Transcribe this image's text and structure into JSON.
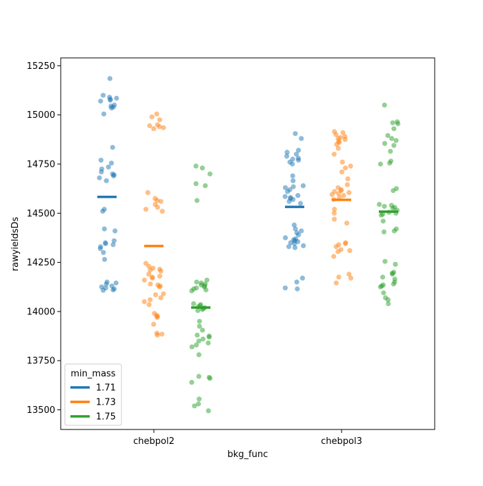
{
  "chart_data": {
    "type": "scatter",
    "subtype": "strip-plot-with-means",
    "xlabel": "bkg_func",
    "ylabel": "rawyieldsDs",
    "categories": [
      "chebpol2",
      "chebpol3"
    ],
    "ylim": [
      13400,
      15290
    ],
    "yticks": [
      13500,
      13750,
      14000,
      14250,
      14500,
      14750,
      15000,
      15250
    ],
    "grid": false,
    "legend": {
      "title": "min_mass",
      "placement": "lower-left",
      "entries": [
        "1.71",
        "1.73",
        "1.75"
      ]
    },
    "series": [
      {
        "name": "1.71",
        "color": "#1f77b4",
        "groups": [
          {
            "category": "chebpol2",
            "mean": 14583,
            "points": [
              15185,
              15100,
              15090,
              15085,
              15080,
              15075,
              15070,
              15050,
              15045,
              15040,
              15035,
              15005,
              14835,
              14770,
              14735,
              14725,
              14710,
              14700,
              14695,
              14690,
              14680,
              14665,
              14755,
              14520,
              14510,
              14420,
              14410,
              14360,
              14350,
              14345,
              14340,
              14330,
              14320,
              14300,
              14265,
              14150,
              14145,
              14140,
              14130,
              14125,
              14120,
              14115,
              14110,
              14108
            ]
          },
          {
            "category": "chebpol3",
            "mean": 14532,
            "points": [
              14905,
              14880,
              14820,
              14810,
              14800,
              14790,
              14780,
              14775,
              14770,
              14760,
              14750,
              14690,
              14665,
              14640,
              14635,
              14630,
              14620,
              14610,
              14590,
              14585,
              14580,
              14575,
              14570,
              14560,
              14550,
              14440,
              14420,
              14410,
              14400,
              14390,
              14375,
              14370,
              14365,
              14360,
              14355,
              14350,
              14345,
              14335,
              14330,
              14325,
              14170,
              14150,
              14120,
              14115
            ]
          }
        ]
      },
      {
        "name": "1.73",
        "color": "#ff7f0e",
        "groups": [
          {
            "category": "chebpol2",
            "mean": 14333,
            "points": [
              15005,
              14990,
              14975,
              14950,
              14945,
              14940,
              14935,
              14930,
              14605,
              14575,
              14565,
              14560,
              14545,
              14530,
              14520,
              14510,
              14245,
              14230,
              14220,
              14215,
              14210,
              14205,
              14190,
              14180,
              14175,
              14170,
              14160,
              14140,
              14135,
              14130,
              14125,
              14090,
              14085,
              14070,
              14060,
              14050,
              14035,
              13990,
              13980,
              13975,
              13970,
              13935,
              13890,
              13885,
              13880
            ]
          },
          {
            "category": "chebpol3",
            "mean": 14568,
            "points": [
              14915,
              14910,
              14900,
              14890,
              14885,
              14880,
              14875,
              14865,
              14860,
              14850,
              14830,
              14800,
              14760,
              14740,
              14730,
              14710,
              14675,
              14645,
              14630,
              14620,
              14615,
              14610,
              14605,
              14600,
              14595,
              14590,
              14580,
              14570,
              14520,
              14500,
              14470,
              14450,
              14350,
              14345,
              14340,
              14330,
              14315,
              14310,
              14305,
              14280,
              14190,
              14175,
              14170,
              14145
            ]
          }
        ]
      },
      {
        "name": "1.75",
        "color": "#2ca02c",
        "groups": [
          {
            "category": "chebpol2",
            "mean": 14020,
            "points": [
              14740,
              14730,
              14700,
              14650,
              14640,
              14565,
              14160,
              14150,
              14145,
              14140,
              14135,
              14130,
              14125,
              14120,
              14115,
              14110,
              14105,
              14040,
              14035,
              14030,
              14025,
              14020,
              14015,
              14010,
              14005,
              13950,
              13925,
              13905,
              13880,
              13875,
              13870,
              13860,
              13850,
              13840,
              13830,
              13820,
              13780,
              13670,
              13665,
              13660,
              13640,
              13555,
              13530,
              13520,
              13495
            ]
          },
          {
            "category": "chebpol3",
            "mean": 14508,
            "points": [
              15050,
              14965,
              14960,
              14955,
              14930,
              14895,
              14880,
              14870,
              14855,
              14845,
              14815,
              14765,
              14755,
              14750,
              14625,
              14615,
              14545,
              14540,
              14535,
              14530,
              14525,
              14515,
              14505,
              14500,
              14495,
              14490,
              14460,
              14420,
              14410,
              14405,
              14255,
              14240,
              14200,
              14195,
              14190,
              14175,
              14165,
              14150,
              14140,
              14135,
              14130,
              14125,
              14095,
              14070,
              14060,
              14040
            ]
          }
        ]
      }
    ]
  }
}
